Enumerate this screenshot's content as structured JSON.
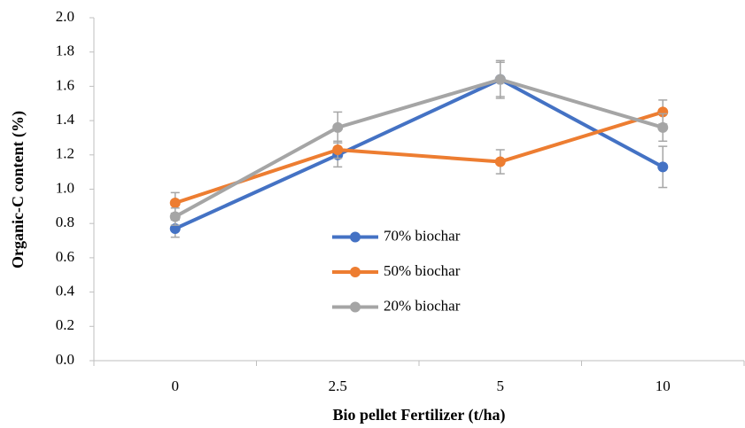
{
  "chart_data": {
    "type": "line",
    "x_label": "Bio pellet Fertilizer (t/ha)",
    "y_label": "Organic-C content (%)",
    "categories": [
      "0",
      "2.5",
      "5",
      "10"
    ],
    "series": [
      {
        "name": "70% biochar",
        "color": "#4472c4",
        "values": [
          0.77,
          1.2,
          1.64,
          1.13
        ],
        "errors": [
          0.05,
          0.07,
          0.1,
          0.12
        ]
      },
      {
        "name": "50% biochar",
        "color": "#ed7d31",
        "values": [
          0.92,
          1.23,
          1.16,
          1.45
        ],
        "errors": [
          0.06,
          0.05,
          0.07,
          0.07
        ]
      },
      {
        "name": "20% biochar",
        "color": "#a5a5a5",
        "values": [
          0.84,
          1.36,
          1.64,
          1.36
        ],
        "errors": [
          0.05,
          0.09,
          0.11,
          0.08
        ]
      }
    ],
    "ylim": [
      0,
      2
    ],
    "yticks": [
      {
        "value": 0,
        "label": "0.0"
      },
      0.2,
      0.4,
      0.6,
      0.8,
      {
        "value": 1,
        "label": "1.0"
      },
      1.2,
      1.4,
      1.6,
      1.8,
      {
        "value": 2,
        "label": "2.0"
      }
    ],
    "grid": false,
    "legend": "center"
  }
}
